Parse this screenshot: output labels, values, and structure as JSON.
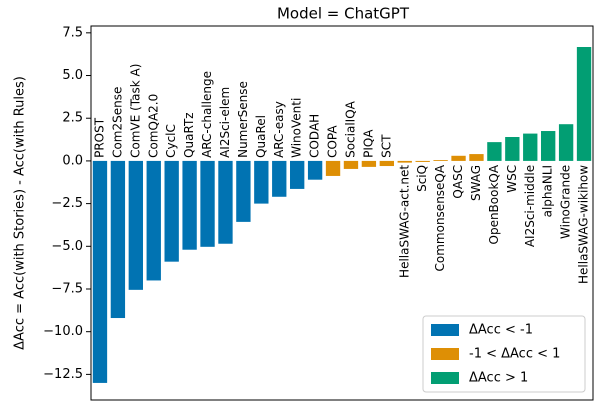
{
  "chart_data": {
    "type": "bar",
    "title": "Model = ChatGPT",
    "y_label": "ΔAcc = Acc(with Stories) - Acc(with Rules)",
    "categories": [
      "PROST",
      "Com2Sense",
      "ComVE (Task A)",
      "ComQA2.0",
      "CyclC",
      "QuaRTz",
      "ARC-challenge",
      "AI2Sci-elem",
      "NumerSense",
      "QuaRel",
      "ARC-easy",
      "WinoVenti",
      "CODAH",
      "COPA",
      "SocialIQA",
      "PIQA",
      "SCT",
      "HellaSWAG-act.net",
      "SciQ",
      "CommonsenseQA",
      "QASC",
      "SWAG",
      "OpenBookQA",
      "WSC",
      "AI2Sci-middle",
      "alphaNLI",
      "WinoGrande",
      "HellaSWAG-wikihow"
    ],
    "series": [
      {
        "name": "ΔAcc < -1",
        "color": "#0173b2",
        "values": [
          -13.0,
          -9.2,
          -7.55,
          -7.0,
          -5.9,
          -5.2,
          -5.03,
          -4.85,
          -3.57,
          -2.5,
          -2.1,
          -1.64,
          -1.1,
          null,
          null,
          null,
          null,
          null,
          null,
          null,
          null,
          null,
          null,
          null,
          null,
          null,
          null,
          null
        ]
      },
      {
        "name": "-1 < ΔAcc < 1",
        "color": "#de8f05",
        "values": [
          null,
          null,
          null,
          null,
          null,
          null,
          null,
          null,
          null,
          null,
          null,
          null,
          null,
          -0.88,
          -0.47,
          -0.35,
          -0.3,
          -0.1,
          -0.06,
          0.05,
          0.3,
          0.4,
          null,
          null,
          null,
          null,
          null,
          null
        ]
      },
      {
        "name": "ΔAcc > 1",
        "color": "#029e73",
        "values": [
          null,
          null,
          null,
          null,
          null,
          null,
          null,
          null,
          null,
          null,
          null,
          null,
          null,
          null,
          null,
          null,
          null,
          null,
          null,
          null,
          null,
          null,
          1.1,
          1.4,
          1.6,
          1.75,
          2.15,
          6.67
        ]
      }
    ],
    "ylim": [
      -14,
      7.9
    ],
    "yticks": [
      {
        "value": -12.5,
        "label": "−12.5"
      },
      {
        "value": -10,
        "label": "−10.0"
      },
      {
        "value": -7.5,
        "label": "−7.5"
      },
      {
        "value": -5,
        "label": "−5.0"
      },
      {
        "value": -2.5,
        "label": "−2.5"
      },
      {
        "value": 0,
        "label": "0.0"
      },
      2.5,
      {
        "value": 5,
        "label": "5.0"
      },
      7.5
    ],
    "legend": "lower right"
  }
}
